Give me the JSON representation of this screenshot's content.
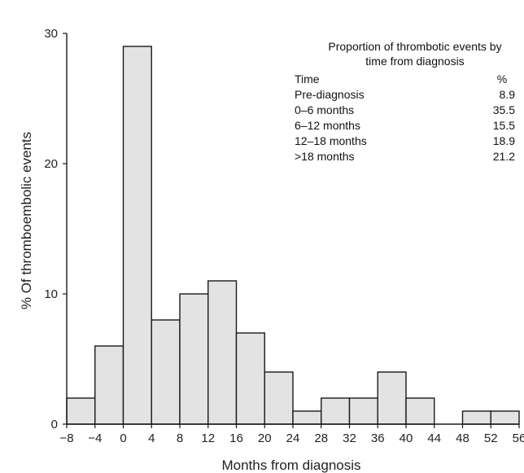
{
  "chart_data": {
    "type": "bar",
    "subtype": "histogram",
    "title": "",
    "xlabel": "Months from diagnosis",
    "ylabel": "% Of thromboembolic events",
    "xlim": [
      -8,
      56
    ],
    "ylim": [
      0,
      30
    ],
    "x_ticks": [
      -8,
      -4,
      0,
      4,
      8,
      12,
      16,
      20,
      24,
      28,
      32,
      36,
      40,
      44,
      48,
      52,
      56
    ],
    "y_ticks": [
      0,
      10,
      20,
      30
    ],
    "bin_width": 4,
    "bins": [
      {
        "start": -8,
        "end": -4,
        "value": 2
      },
      {
        "start": -4,
        "end": 0,
        "value": 6
      },
      {
        "start": 0,
        "end": 4,
        "value": 29
      },
      {
        "start": 4,
        "end": 8,
        "value": 8
      },
      {
        "start": 8,
        "end": 12,
        "value": 10
      },
      {
        "start": 12,
        "end": 16,
        "value": 11
      },
      {
        "start": 16,
        "end": 20,
        "value": 7
      },
      {
        "start": 20,
        "end": 24,
        "value": 4
      },
      {
        "start": 24,
        "end": 28,
        "value": 1
      },
      {
        "start": 28,
        "end": 32,
        "value": 2
      },
      {
        "start": 32,
        "end": 36,
        "value": 2
      },
      {
        "start": 36,
        "end": 40,
        "value": 4
      },
      {
        "start": 40,
        "end": 44,
        "value": 2
      },
      {
        "start": 44,
        "end": 48,
        "value": 0
      },
      {
        "start": 48,
        "end": 52,
        "value": 1
      },
      {
        "start": 52,
        "end": 56,
        "value": 1
      }
    ],
    "bar_fill": "#e3e3e3",
    "bar_stroke": "#1a1a1a",
    "grid": false,
    "inset_table": {
      "title_line1": "Proportion of thrombotic events by",
      "title_line2": "time from diagnosis",
      "headers": [
        "Time",
        "%"
      ],
      "rows": [
        [
          "Pre-diagnosis",
          "8.9"
        ],
        [
          "0–6 months",
          "35.5"
        ],
        [
          "6–12 months",
          "15.5"
        ],
        [
          "12–18 months",
          "18.9"
        ],
        [
          ">18 months",
          "21.2"
        ]
      ]
    }
  }
}
